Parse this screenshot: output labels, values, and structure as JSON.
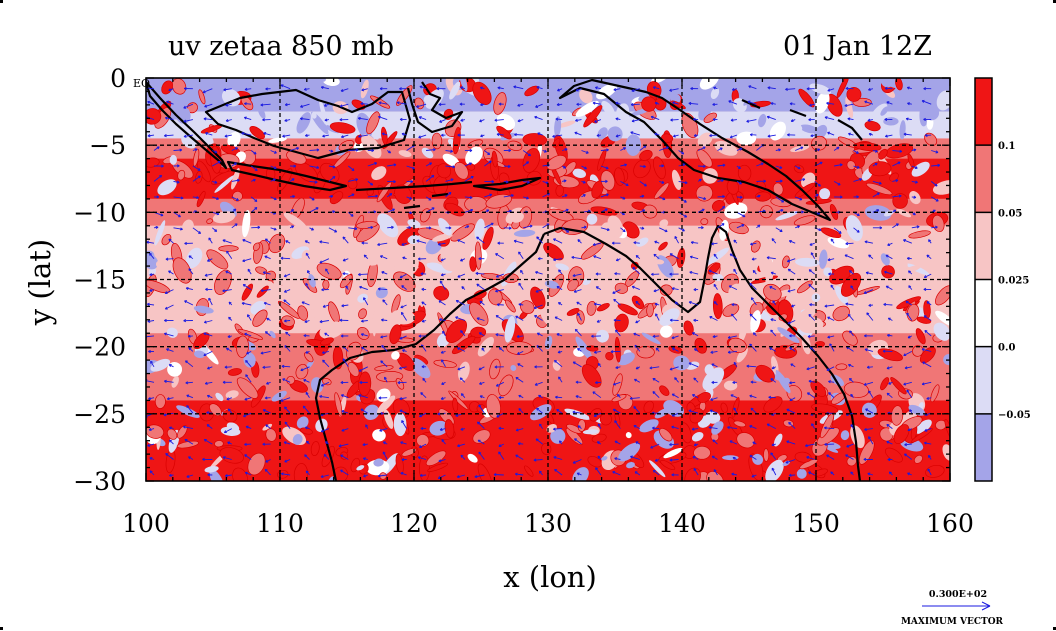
{
  "chart_data": {
    "type": "heatmap",
    "title_left": "uv zetaa 850 mb",
    "title_right": "01 Jan 12Z",
    "xlabel": "x (lon)",
    "ylabel": "y (lat)",
    "xlim": [
      100,
      160
    ],
    "ylim": [
      -30,
      0
    ],
    "x_ticks": [
      "100",
      "110",
      "120",
      "130",
      "140",
      "150",
      "160"
    ],
    "y_ticks": [
      "0",
      "−5",
      "−10",
      "−15",
      "−20",
      "−25",
      "−30"
    ],
    "x_tick_values": [
      100,
      110,
      120,
      130,
      140,
      150,
      160
    ],
    "y_tick_values": [
      0,
      -5,
      -10,
      -15,
      -20,
      -25,
      -30
    ],
    "grid": true,
    "corner_label": "EQ",
    "colorbar": {
      "levels": [
        "0.1",
        "0.05",
        "0.025",
        "0.0",
        "−0.05"
      ],
      "level_values": [
        0.1,
        0.05,
        0.025,
        0.0,
        -0.05
      ],
      "bands": [
        {
          "range": "> 0.1",
          "color": "#ef1515"
        },
        {
          "range": "0.05 – 0.1",
          "color": "#f07676"
        },
        {
          "range": "0.025 – 0.05",
          "color": "#f7c5c5"
        },
        {
          "range": "0.0 – 0.025",
          "color": "#ffffff"
        },
        {
          "range": "−0.05 – 0.0",
          "color": "#dcdcf5"
        },
        {
          "range": "< −0.05",
          "color": "#a4a4e8"
        }
      ]
    },
    "zonal_structure": [
      {
        "lat_range": [
          0,
          -5
        ],
        "dominant": "< −0.05 / −0.05 – 0.0 mixed with > 0.1"
      },
      {
        "lat_range": [
          -5,
          -10
        ],
        "dominant": "> 0.1 and 0.05 – 0.1"
      },
      {
        "lat_range": [
          -10,
          -20
        ],
        "dominant": "0.025 – 0.05 and 0.05 – 0.1"
      },
      {
        "lat_range": [
          -20,
          -30
        ],
        "dominant": "0.05 – 0.1 and > 0.1 with −0.05 patches"
      }
    ],
    "vector_legend": {
      "value_label": "0.300E+02",
      "caption": "MAXIMUM VECTOR",
      "max_value": 30.0
    },
    "colors": {
      "strong_pos": "#ef1515",
      "mid_pos": "#f07676",
      "weak_pos": "#f7c5c5",
      "near_zero": "#ffffff",
      "weak_neg": "#dcdcf5",
      "strong_neg": "#a4a4e8",
      "vectors": "#1a1ae0",
      "coast": "#000000"
    }
  }
}
